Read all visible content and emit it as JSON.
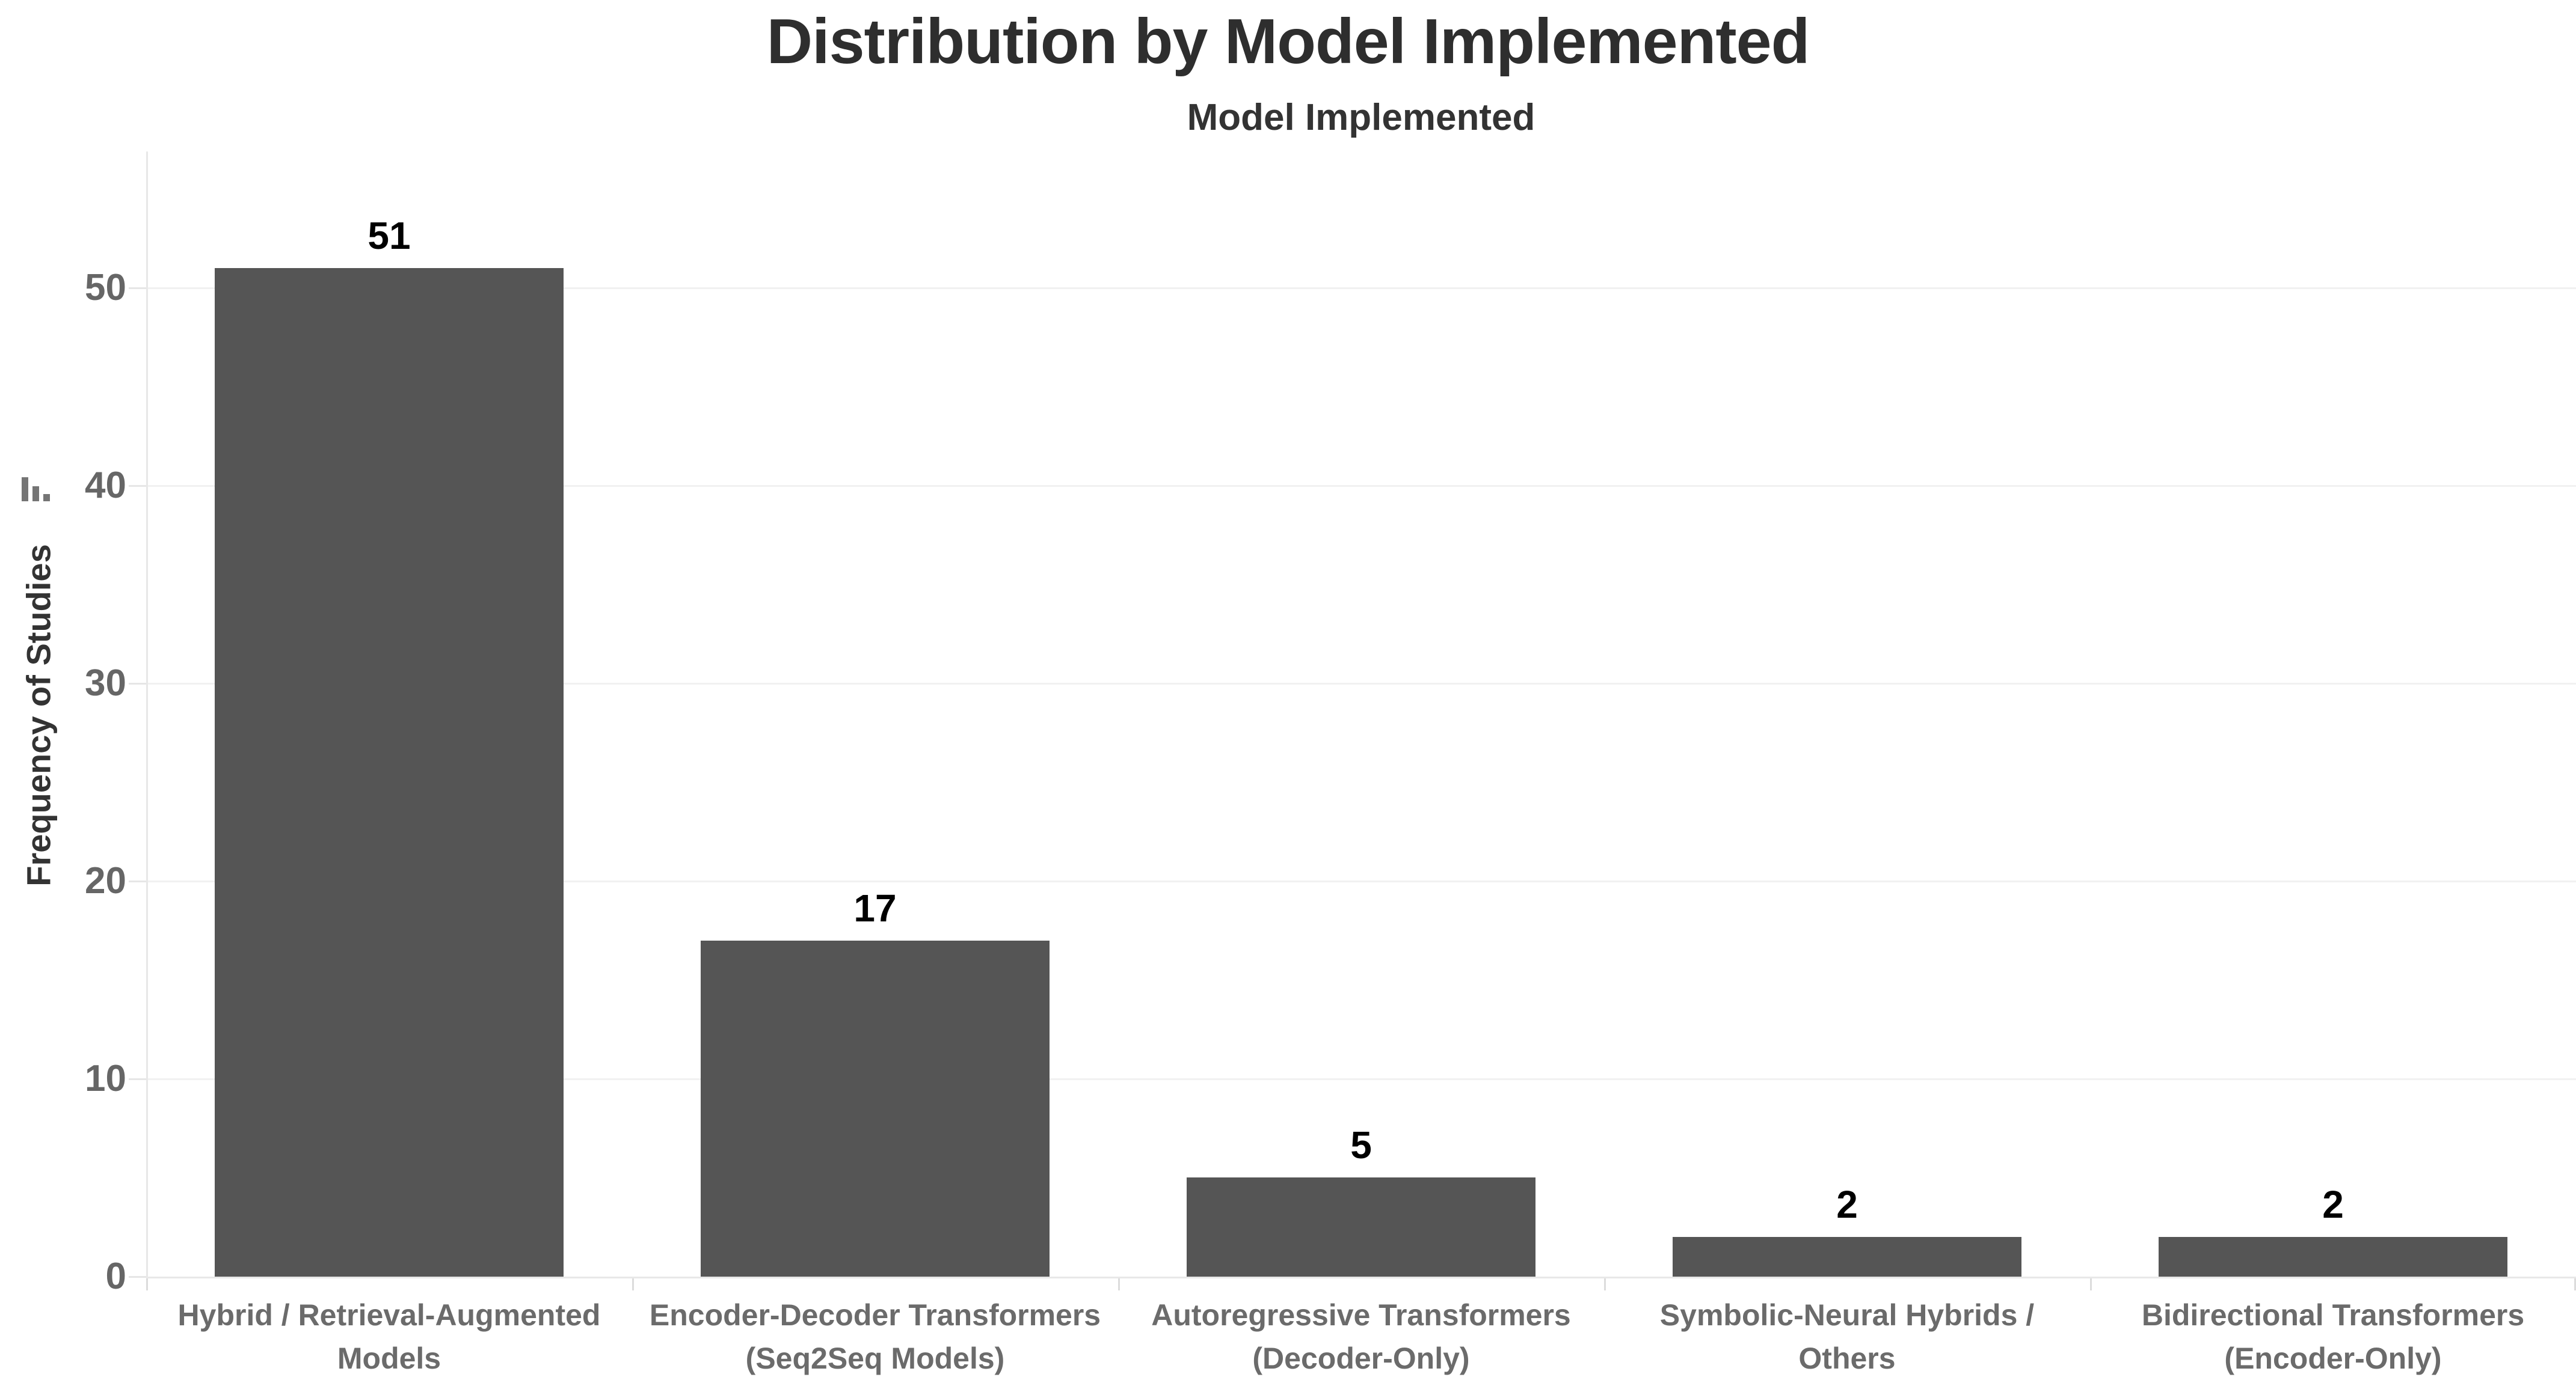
{
  "chart": {
    "title": "Distribution by Model Implemented",
    "subtitle": "Model Implemented",
    "ylabel": "Frequency of Studies"
  },
  "icons": {
    "y_axis_sort": "sort-descending-bars-icon"
  },
  "chart_data": {
    "type": "bar",
    "title": "Distribution by Model Implemented",
    "subtitle": "Model Implemented",
    "xlabel": "Model Implemented",
    "ylabel": "Frequency of Studies",
    "categories": [
      "Hybrid / Retrieval-Augmented Models",
      "Encoder-Decoder Transformers (Seq2Seq Models)",
      "Autoregressive Transformers (Decoder-Only)",
      "Symbolic-Neural Hybrids / Others",
      "Bidirectional Transformers (Encoder-Only)"
    ],
    "categories_lines": [
      [
        "Hybrid / Retrieval-Augmented",
        "Models"
      ],
      [
        "Encoder-Decoder Transformers",
        "(Seq2Seq Models)"
      ],
      [
        "Autoregressive Transformers",
        "(Decoder-Only)"
      ],
      [
        "Symbolic-Neural Hybrids /",
        "Others"
      ],
      [
        "Bidirectional Transformers",
        "(Encoder-Only)"
      ]
    ],
    "values": [
      51,
      17,
      5,
      2,
      2
    ],
    "yticks": [
      0,
      10,
      20,
      30,
      40,
      50
    ],
    "ylim": [
      0,
      57
    ],
    "grid": "horizontal-faint",
    "legend": "none",
    "bar_color": "#555555",
    "value_label_color": "#000000",
    "tick_label_color": "#666666",
    "category_label_color": "#6b6b6b",
    "title_color": "#2e2e2e"
  }
}
